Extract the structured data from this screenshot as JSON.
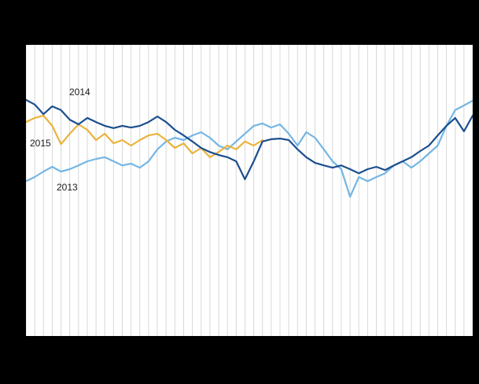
{
  "chart_data": {
    "type": "line",
    "title": "",
    "xlabel": "",
    "ylabel": "",
    "x_count": 52,
    "ylim": [
      0,
      100
    ],
    "grid": "vertical-weekly",
    "legend_position": "inline-labels",
    "plot_background": "#ffffff",
    "page_background": "#000000",
    "gridline_color": "#d8d8d8",
    "series": [
      {
        "name": "2013",
        "color": "#74b6e4",
        "values": [
          53.2,
          54.6,
          56.5,
          58.1,
          56.5,
          57.3,
          58.6,
          60,
          60.8,
          61.4,
          60,
          58.6,
          59.2,
          57.8,
          60,
          64.1,
          66.8,
          68.1,
          67.3,
          68.9,
          70,
          68.1,
          65.4,
          64.1,
          66.8,
          69.5,
          72.2,
          73,
          71.6,
          72.7,
          69.5,
          65.4,
          70,
          68.1,
          64.1,
          60,
          57.3,
          47.8,
          54.6,
          53.2,
          54.6,
          55.9,
          58.6,
          60,
          57.8,
          60,
          62.7,
          65.4,
          72.2,
          77.6,
          79.2,
          80.8
        ]
      },
      {
        "name": "2015",
        "color": "#eab33c",
        "values": [
          73.5,
          74.9,
          75.7,
          72.2,
          65.9,
          69.5,
          72.7,
          70.8,
          67.3,
          69.5,
          66.2,
          67.3,
          65.4,
          67.3,
          68.9,
          69.5,
          67.3,
          64.6,
          66.2,
          62.7,
          64.6,
          61.4,
          63.2,
          65.4,
          64.1,
          66.8,
          65.4,
          67.3
        ]
      },
      {
        "name": "2014",
        "color": "#1b4e8f",
        "values": [
          81.1,
          79.5,
          76.2,
          78.9,
          77.6,
          74.3,
          72.7,
          74.9,
          73.5,
          72.2,
          71.4,
          72.2,
          71.6,
          72.2,
          73.5,
          75.4,
          73.5,
          70.8,
          68.9,
          66.8,
          64.6,
          63.2,
          62.2,
          61.4,
          60,
          53.8,
          60,
          66.8,
          67.6,
          67.8,
          67.3,
          64.1,
          61.4,
          59.5,
          58.6,
          57.8,
          58.6,
          57.3,
          55.9,
          57.3,
          58.1,
          57,
          58.6,
          60,
          61.4,
          63.5,
          65.4,
          68.9,
          72.2,
          74.9,
          70.3,
          75.7
        ]
      }
    ]
  }
}
